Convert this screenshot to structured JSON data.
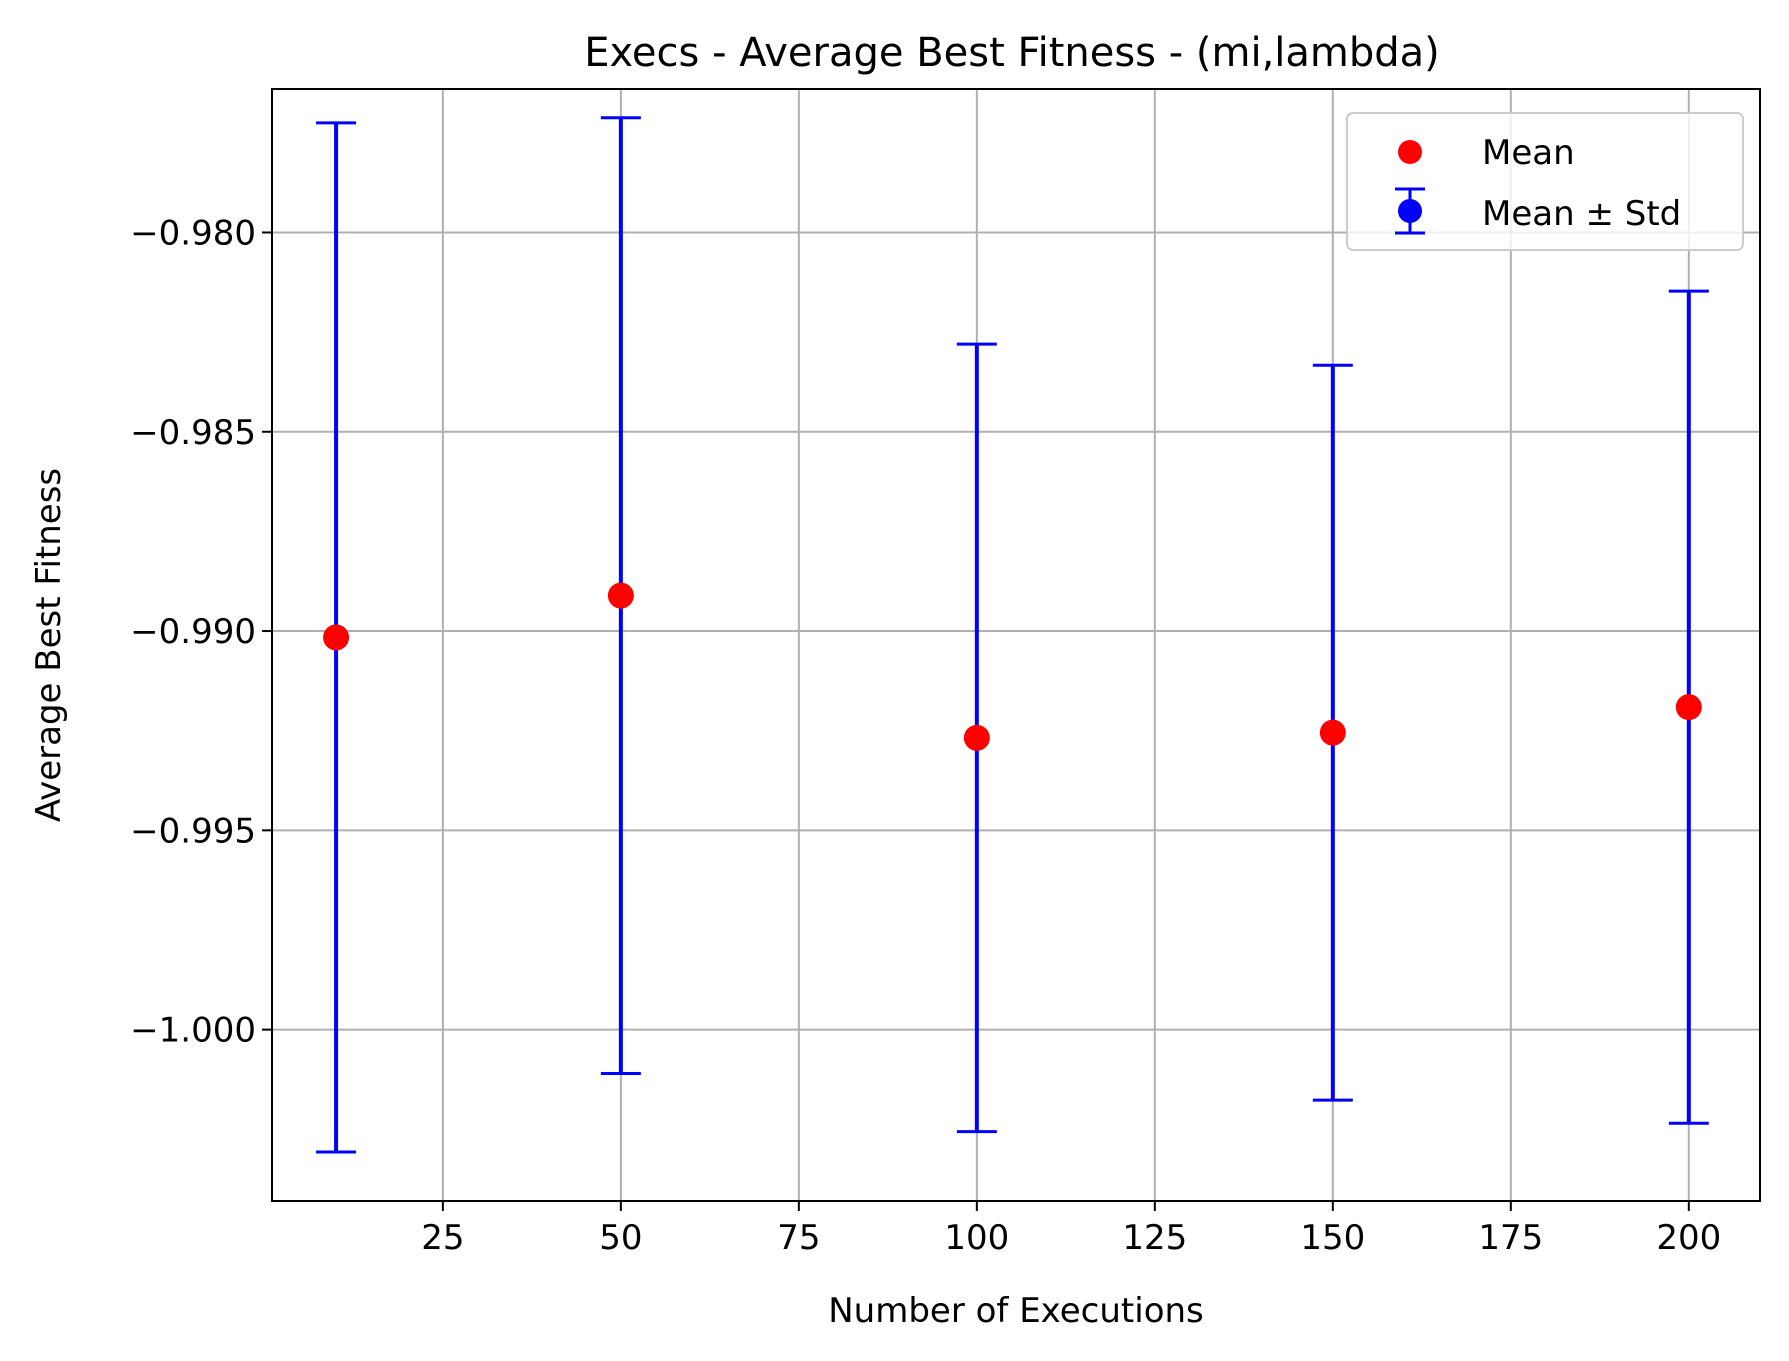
{
  "chart_data": {
    "type": "scatter",
    "title": "Execs - Average Best Fitness - (mi,lambda)",
    "xlabel": "Number of Executions",
    "ylabel": "Average Best Fitness",
    "xlim": [
      1,
      210
    ],
    "ylim": [
      -1.0043,
      -0.9764
    ],
    "x_ticks": [
      25,
      50,
      75,
      100,
      125,
      150,
      175,
      200
    ],
    "x_tick_labels": [
      "25",
      "50",
      "75",
      "100",
      "125",
      "150",
      "175",
      "200"
    ],
    "y_ticks": [
      -0.98,
      -0.985,
      -0.99,
      -0.995,
      -1.0
    ],
    "y_tick_labels": [
      "−0.980",
      "−0.985",
      "−0.990",
      "−0.995",
      "−1.000"
    ],
    "grid": true,
    "legend_position": "top-right",
    "series": [
      {
        "name": "Mean",
        "color": "#ff0000",
        "marker": "circle",
        "x": [
          10,
          50,
          100,
          150,
          200
        ],
        "y": [
          -0.99016,
          -0.98911,
          -0.99268,
          -0.99255,
          -0.99191
        ]
      },
      {
        "name": "Mean ± Std",
        "color": "#0000ff",
        "marker": "errorbar",
        "x": [
          10,
          50,
          100,
          150,
          200
        ],
        "y": [
          -0.99016,
          -0.98911,
          -0.99268,
          -0.99255,
          -0.99191
        ],
        "yerr": [
          0.01291,
          0.01199,
          0.00988,
          0.00922,
          0.01044
        ]
      }
    ]
  }
}
